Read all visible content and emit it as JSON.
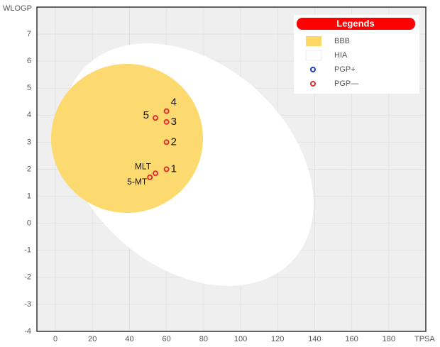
{
  "chart_data": {
    "type": "scatter",
    "xlabel": "TPSA",
    "ylabel": "WLOGP",
    "xlim": [
      -10,
      200
    ],
    "ylim": [
      -4,
      8
    ],
    "xticks": [
      0,
      20,
      40,
      60,
      80,
      100,
      120,
      140,
      160,
      180
    ],
    "yticks": [
      -4,
      -3,
      -2,
      -1,
      0,
      1,
      2,
      3,
      4,
      5,
      6,
      7
    ],
    "grid": true,
    "series": [
      {
        "name": "PGP—",
        "color": "#e03030",
        "labels": [
          "1",
          "2",
          "3",
          "4",
          "5",
          "MLT",
          "5-MT"
        ],
        "x": [
          60,
          60,
          60,
          60,
          54,
          54,
          51
        ],
        "values": [
          2.0,
          3.0,
          3.75,
          4.15,
          3.9,
          1.85,
          1.7
        ]
      }
    ],
    "legend": {
      "title": "Legends",
      "items": [
        {
          "label": "BBB",
          "color": "#fdd867"
        },
        {
          "label": "HIA",
          "color": "#ffffff"
        },
        {
          "label": "PGP+",
          "color": "#1f3fbf"
        },
        {
          "label": "PGP—",
          "color": "#e03030"
        }
      ]
    }
  }
}
